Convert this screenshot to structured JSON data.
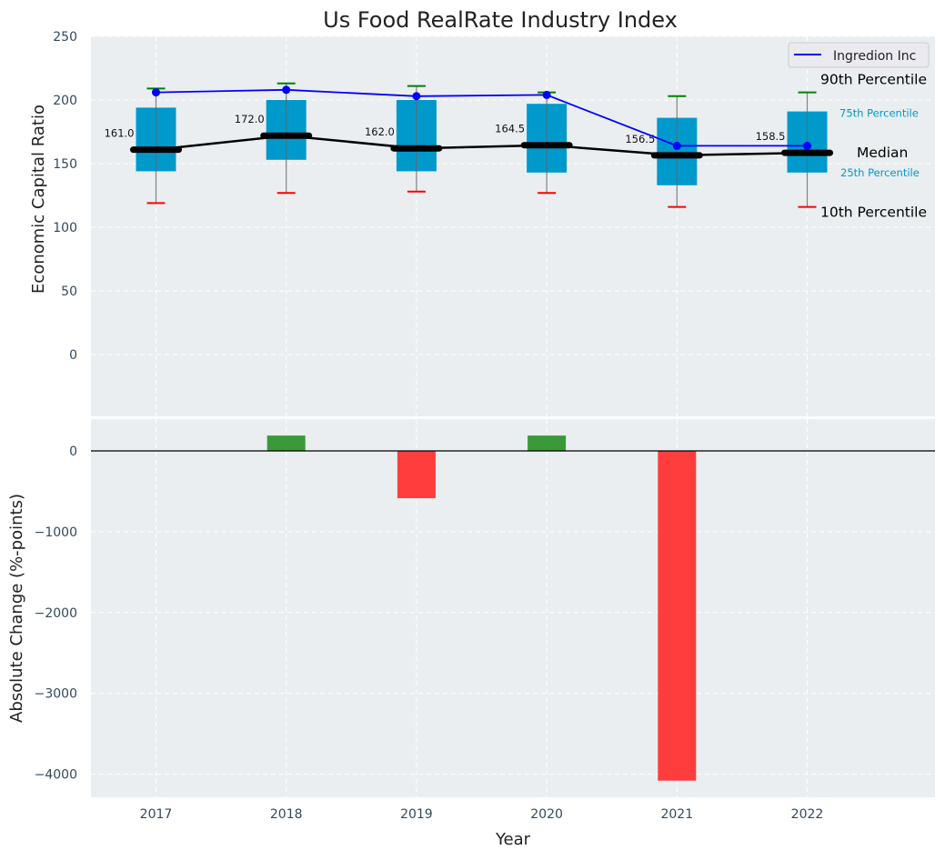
{
  "chart_data": [
    {
      "type": "box",
      "title": "Us Food RealRate Industry Index",
      "xlabel": "",
      "ylabel": "Economic Capital Ratio",
      "ylim": [
        -50,
        250
      ],
      "yticks": [
        0,
        50,
        100,
        150,
        200,
        250
      ],
      "categories": [
        "2017",
        "2018",
        "2019",
        "2020",
        "2021",
        "2022"
      ],
      "percentiles": {
        "p10": [
          119,
          127,
          128,
          127,
          116,
          116
        ],
        "p25": [
          144,
          153,
          144,
          143,
          133,
          143
        ],
        "median": [
          161.0,
          172.0,
          162.0,
          164.5,
          156.5,
          158.5
        ],
        "p75": [
          194,
          200,
          200,
          197,
          186,
          191
        ],
        "p90": [
          209,
          213,
          211,
          206,
          203,
          206
        ]
      },
      "median_labels": [
        "161.0",
        "172.0",
        "162.0",
        "164.5",
        "156.5",
        "158.5"
      ],
      "series": [
        {
          "name": "Ingredion Inc",
          "values": [
            206,
            208,
            203,
            204,
            164,
            164
          ],
          "color": "#0000ff"
        }
      ],
      "annotations": {
        "p90": "90th Percentile",
        "p75": "75th Percentile",
        "median": "Median",
        "p25": "25th Percentile",
        "p10": "10th Percentile"
      },
      "legend": {
        "placement": "top-right",
        "entries": [
          "Ingredion Inc"
        ]
      },
      "grid": true,
      "colors": {
        "box": "#0099cc",
        "p90_cap": "#008000",
        "p10_cap": "#ff0000",
        "median": "#000000",
        "background": "#eaeef0"
      }
    },
    {
      "type": "bar",
      "title": "",
      "xlabel": "Year",
      "ylabel": "Absolute Change (%-points)",
      "ylim": [
        -4290,
        400
      ],
      "yticks": [
        0,
        -1000,
        -2000,
        -3000,
        -4000
      ],
      "ytick_labels": [
        "0",
        "−1000",
        "−2000",
        "−3000",
        "−4000"
      ],
      "categories": [
        "2017",
        "2018",
        "2019",
        "2020",
        "2021",
        "2022"
      ],
      "values": [
        0,
        190,
        -585,
        190,
        -4080,
        0
      ],
      "grid": true,
      "colors": {
        "positive": "#3a9a3a",
        "negative": "#ff3d3d"
      }
    }
  ]
}
